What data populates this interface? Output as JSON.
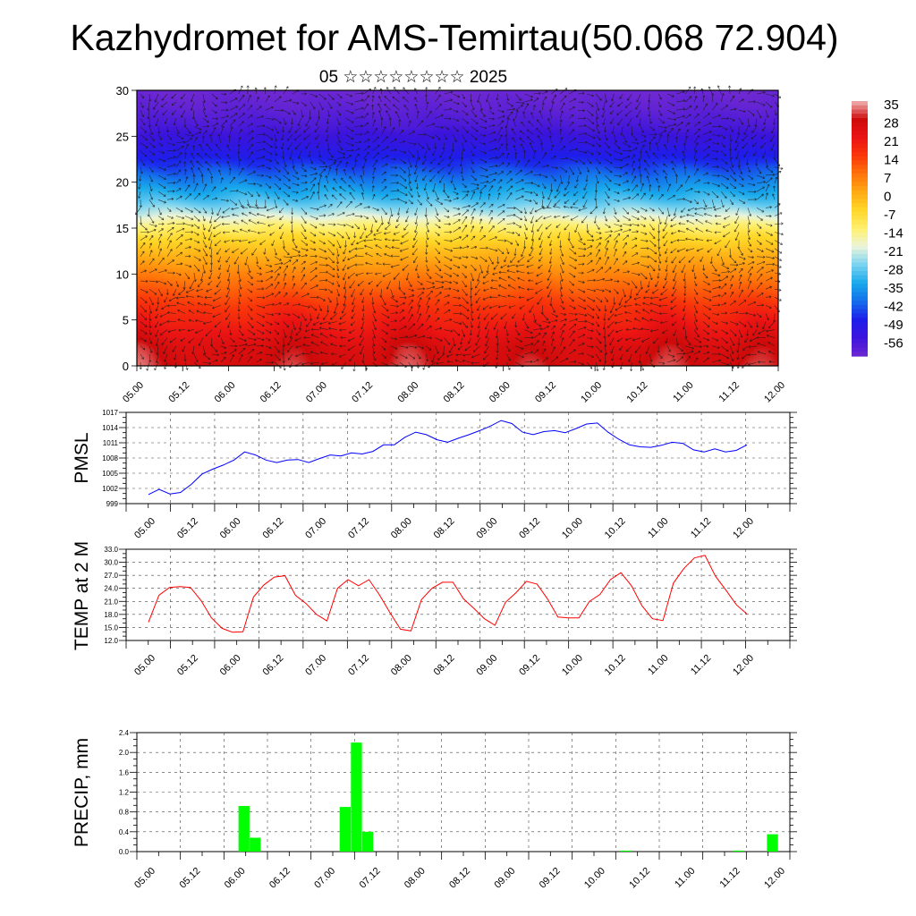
{
  "header": {
    "title": "Kazhydromet for AMS-Temirtau(50.068 72.904)",
    "subtitle": "05 ☆☆☆☆☆☆☆☆ 2025"
  },
  "chart_data": [
    {
      "id": "cross-section",
      "type": "heatmap",
      "description_overlay": "wind-vectors",
      "x_tick_labels": [
        "05.00",
        "05.12",
        "06.00",
        "06.12",
        "07.00",
        "07.12",
        "08.00",
        "08.12",
        "09.00",
        "09.12",
        "10.00",
        "10.12",
        "11.00",
        "11.12",
        "12.00"
      ],
      "ylim": [
        0,
        30
      ],
      "y_ticks": [
        0,
        5,
        10,
        15,
        20,
        25,
        30
      ],
      "colorbar": {
        "labels": [
          "35",
          "28",
          "21",
          "14",
          "7",
          "0",
          "-7",
          "-14",
          "-21",
          "-28",
          "-35",
          "-42",
          "-49",
          "-56"
        ],
        "range": [
          -60,
          38
        ]
      },
      "layers": [
        {
          "y": 0,
          "value": 32
        },
        {
          "y": 2,
          "value": 30
        },
        {
          "y": 4,
          "value": 25
        },
        {
          "y": 6,
          "value": 20
        },
        {
          "y": 8,
          "value": 14
        },
        {
          "y": 10,
          "value": 8
        },
        {
          "y": 12,
          "value": 2
        },
        {
          "y": 14,
          "value": -5
        },
        {
          "y": 15.5,
          "value": -13
        },
        {
          "y": 16.5,
          "value": -20
        },
        {
          "y": 18,
          "value": -28
        },
        {
          "y": 20,
          "value": -36
        },
        {
          "y": 22,
          "value": -44
        },
        {
          "y": 24,
          "value": -50
        },
        {
          "y": 26,
          "value": -55
        },
        {
          "y": 28,
          "value": -58
        },
        {
          "y": 30,
          "value": -60
        }
      ],
      "warm_columns": [
        {
          "at": 0.0,
          "strength": 1.0
        },
        {
          "at": 3.4,
          "strength": 0.8
        },
        {
          "at": 5.9,
          "strength": 0.9
        },
        {
          "at": 8.6,
          "strength": 0.6
        },
        {
          "at": 11.6,
          "strength": 0.9
        },
        {
          "at": 13.6,
          "strength": 0.8
        }
      ]
    },
    {
      "id": "pmsl",
      "type": "line",
      "ylabel": "PMSL",
      "x_tick_labels": [
        "05.00",
        "05.12",
        "06.00",
        "06.12",
        "07.00",
        "07.12",
        "08.00",
        "08.12",
        "09.00",
        "09.12",
        "10.00",
        "10.12",
        "11.00",
        "11.12",
        "12.00"
      ],
      "y_ticks": [
        "999",
        "1002",
        "1005",
        "1008",
        "1011",
        "1014",
        "1017"
      ],
      "ylim": [
        999,
        1017
      ],
      "color": "#0000ff",
      "values": [
        1000.8,
        1001.8,
        1000.9,
        1001.2,
        1002.8,
        1004.8,
        1005.8,
        1006.6,
        1007.6,
        1009.2,
        1008.6,
        1007.6,
        1007.1,
        1007.6,
        1007.7,
        1007.1,
        1007.9,
        1008.6,
        1008.4,
        1009.0,
        1008.8,
        1009.3,
        1010.6,
        1010.6,
        1012.1,
        1013.1,
        1012.6,
        1011.6,
        1011.1,
        1011.9,
        1012.6,
        1013.4,
        1014.3,
        1015.4,
        1014.8,
        1013.1,
        1012.6,
        1013.2,
        1013.4,
        1013.0,
        1013.8,
        1014.7,
        1014.9,
        1013.1,
        1011.7,
        1010.6,
        1010.2,
        1010.1,
        1010.5,
        1011.1,
        1010.9,
        1009.6,
        1009.2,
        1009.8,
        1009.2,
        1009.5,
        1010.6
      ]
    },
    {
      "id": "temp2m",
      "type": "line",
      "ylabel": "TEMP at 2 M",
      "x_tick_labels": [
        "05.00",
        "05.12",
        "06.00",
        "06.12",
        "07.00",
        "07.12",
        "08.00",
        "08.12",
        "09.00",
        "09.12",
        "10.00",
        "10.12",
        "11.00",
        "11.12",
        "12.00"
      ],
      "y_ticks": [
        "12.0",
        "15.0",
        "18.0",
        "21.0",
        "24.0",
        "27.0",
        "30.0",
        "33.0"
      ],
      "ylim": [
        12,
        33
      ],
      "color": "#ff0000",
      "values": [
        16.2,
        22.4,
        24.2,
        24.4,
        24.2,
        21.2,
        17.2,
        14.8,
        13.9,
        14.0,
        22.0,
        24.8,
        26.6,
        26.9,
        22.4,
        20.5,
        18.0,
        16.5,
        24.0,
        26.0,
        24.6,
        26.0,
        22.5,
        18.4,
        14.6,
        14.2,
        21.4,
        24.0,
        25.4,
        25.4,
        21.6,
        19.4,
        17.0,
        15.5,
        20.8,
        23.0,
        25.6,
        25.0,
        21.6,
        17.4,
        17.2,
        17.2,
        21.0,
        22.6,
        26.0,
        27.6,
        24.6,
        20.0,
        17.0,
        16.6,
        25.2,
        28.6,
        31.0,
        31.6,
        26.8,
        23.6,
        20.2,
        18.1
      ]
    },
    {
      "id": "precip",
      "type": "bar",
      "ylabel": "PRECIP, mm",
      "x_tick_labels": [
        "05.00",
        "05.12",
        "06.00",
        "06.12",
        "07.00",
        "07.12",
        "08.00",
        "08.12",
        "09.00",
        "09.12",
        "10.00",
        "10.12",
        "11.00",
        "11.12",
        "12.00"
      ],
      "y_ticks": [
        "0.0",
        "0.4",
        "0.8",
        "1.2",
        "1.6",
        "2.0",
        "2.4"
      ],
      "ylim": [
        0,
        2.4
      ],
      "color": "#00ff00",
      "bar_slot_hours": 3,
      "bars": [
        {
          "slot": 9,
          "value": 0.92
        },
        {
          "slot": 10,
          "value": 0.28
        },
        {
          "slot": 18,
          "value": 0.9
        },
        {
          "slot": 19,
          "value": 2.2
        },
        {
          "slot": 20,
          "value": 0.4
        },
        {
          "slot": 43,
          "value": 0.02
        },
        {
          "slot": 53,
          "value": 0.02
        },
        {
          "slot": 56,
          "value": 0.35
        }
      ]
    }
  ]
}
